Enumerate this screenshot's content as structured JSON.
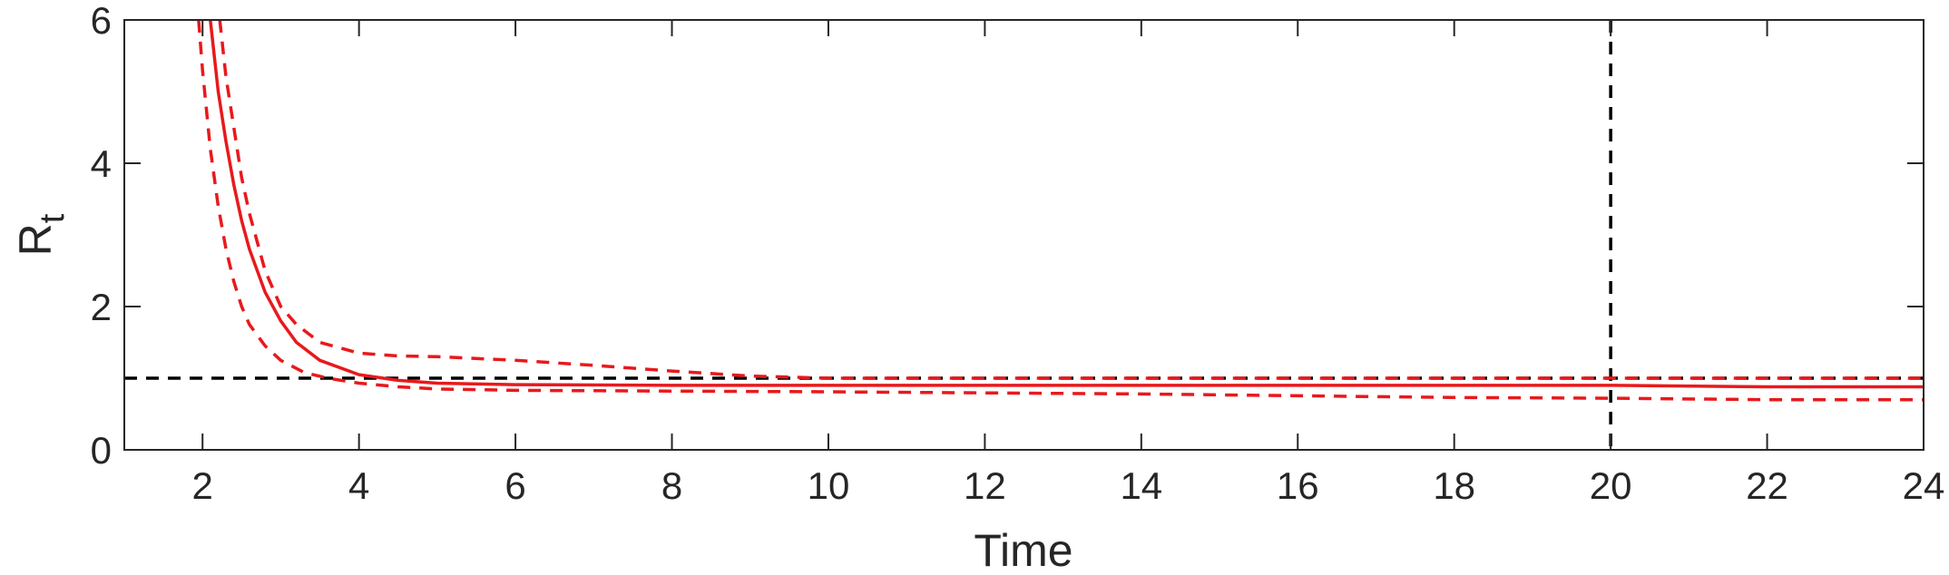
{
  "chart_data": {
    "type": "line",
    "xlabel": "Time",
    "ylabel": {
      "main": "R",
      "subscript": "t"
    },
    "xlim": [
      1,
      24
    ],
    "ylim": [
      0,
      6
    ],
    "x_ticks": [
      "2",
      "4",
      "6",
      "8",
      "10",
      "12",
      "14",
      "16",
      "18",
      "20",
      "22",
      "24"
    ],
    "y_ticks": [
      "0",
      "2",
      "4",
      "6"
    ],
    "grid": false,
    "legend": "none",
    "series": [
      {
        "style": "solid",
        "color": "#e8191c",
        "x": [
          2.1,
          2.2,
          2.3,
          2.4,
          2.5,
          2.6,
          2.8,
          3.0,
          3.2,
          3.5,
          4.0,
          4.5,
          5.0,
          6.0,
          8.0,
          10.0,
          14.0,
          18.0,
          20.0,
          22.0,
          24.0
        ],
        "y": [
          6.0,
          5.0,
          4.3,
          3.7,
          3.2,
          2.8,
          2.2,
          1.8,
          1.5,
          1.25,
          1.05,
          0.97,
          0.93,
          0.91,
          0.9,
          0.9,
          0.9,
          0.9,
          0.9,
          0.88,
          0.88
        ]
      },
      {
        "style": "dashed",
        "color": "#e8191c",
        "x": [
          2.22,
          2.3,
          2.4,
          2.5,
          2.6,
          2.8,
          3.0,
          3.2,
          3.5,
          4.0,
          4.5,
          5.0,
          6.0,
          7.0,
          8.0,
          9.0,
          10.0,
          14.0,
          18.0,
          20.0,
          22.0,
          24.0
        ],
        "y": [
          6.0,
          5.2,
          4.5,
          3.8,
          3.3,
          2.5,
          2.0,
          1.75,
          1.5,
          1.35,
          1.31,
          1.3,
          1.25,
          1.18,
          1.1,
          1.03,
          1.0,
          1.0,
          1.0,
          1.0,
          1.0,
          1.0
        ]
      },
      {
        "style": "dashed",
        "color": "#e8191c",
        "x": [
          1.95,
          2.0,
          2.1,
          2.2,
          2.3,
          2.4,
          2.5,
          2.6,
          2.8,
          3.0,
          3.3,
          3.6,
          4.0,
          4.5,
          5.0,
          6.0,
          8.0,
          10.0,
          14.0,
          18.0,
          20.0,
          22.0,
          24.0
        ],
        "y": [
          6.0,
          5.3,
          4.2,
          3.4,
          2.8,
          2.35,
          2.0,
          1.75,
          1.45,
          1.25,
          1.08,
          1.0,
          0.93,
          0.88,
          0.85,
          0.83,
          0.82,
          0.81,
          0.78,
          0.73,
          0.72,
          0.7,
          0.7
        ]
      }
    ],
    "reference_lines": [
      {
        "orientation": "horizontal",
        "value": 1,
        "style": "dashed",
        "color": "#000000"
      },
      {
        "orientation": "vertical",
        "value": 20,
        "style": "dashed",
        "color": "#000000"
      }
    ]
  }
}
